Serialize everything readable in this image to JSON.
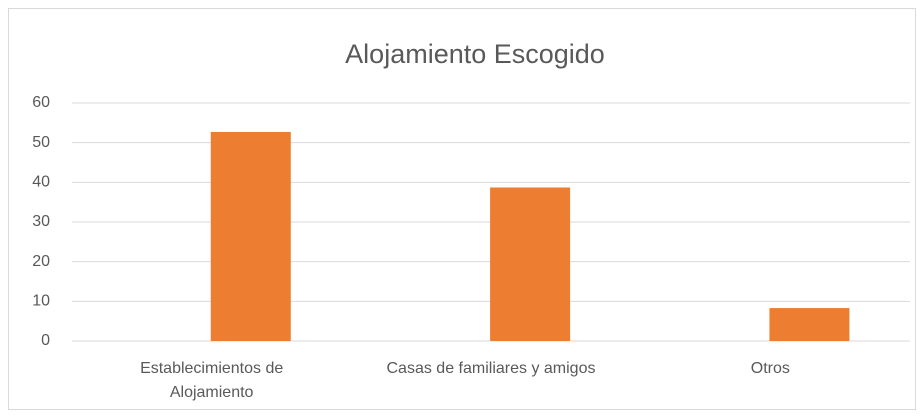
{
  "chart_data": {
    "type": "bar",
    "title": "Alojamiento Escogido",
    "categories": [
      "Establecimientos de Alojamiento",
      "Casas de familiares y amigos",
      "Otros"
    ],
    "values": [
      52.7,
      38.7,
      8.3
    ],
    "color": "#ed7d31",
    "ylim": [
      0,
      60
    ],
    "yticks": [
      0,
      10,
      20,
      30,
      40,
      50,
      60
    ],
    "grid": true
  }
}
